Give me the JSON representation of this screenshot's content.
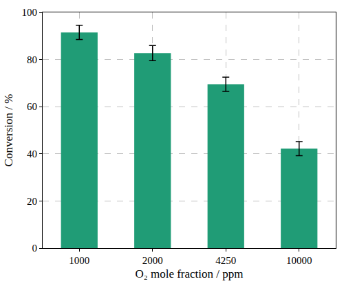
{
  "chart_data": {
    "type": "bar",
    "x_label": "O₂ mole fraction / ppm",
    "y_label": "Conversion / %",
    "categories": [
      "1000",
      "2000",
      "4250",
      "10000"
    ],
    "values": [
      91.5,
      82.7,
      69.5,
      42.2
    ],
    "errors": [
      3,
      3.2,
      3,
      3
    ],
    "color": "#209c76",
    "ylim": [
      0,
      100
    ],
    "yticks": [
      0,
      20,
      40,
      60,
      80,
      100
    ],
    "grid": true
  }
}
